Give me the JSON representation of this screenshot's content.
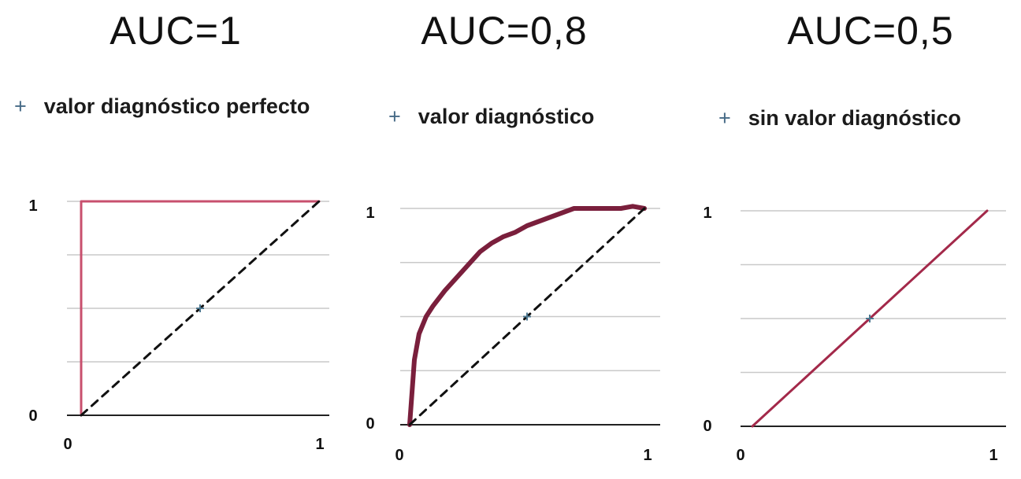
{
  "panels": [
    {
      "title": "AUC=1",
      "subtitle_marker": "+",
      "subtitle": "valor diagnóstico perfecto"
    },
    {
      "title": "AUC=0,8",
      "subtitle_marker": "+",
      "subtitle": "valor diagnóstico"
    },
    {
      "title": "AUC=0,5",
      "subtitle_marker": "+",
      "subtitle": "sin valor diagnóstico"
    }
  ],
  "colors": {
    "roc_curve_panel1": "#c8506e",
    "roc_curve_panel2": "#7a1f3c",
    "roc_curve_panel3": "#a3294a",
    "diagonal": "#111111",
    "grid": "#c9c9c9",
    "center_marker": "#4e7890"
  },
  "chart_data": [
    {
      "type": "line",
      "title": "AUC=1",
      "xlim": [
        0,
        1
      ],
      "ylim": [
        0,
        1
      ],
      "x_ticks": [
        "0",
        "1"
      ],
      "y_ticks": [
        "0",
        "1"
      ],
      "grid": "horizontal",
      "center_marker": [
        0.5,
        0.5
      ],
      "series": [
        {
          "x": [
            0,
            0,
            1
          ],
          "y": [
            0,
            1,
            1
          ],
          "style": "solid"
        },
        {
          "x": [
            0,
            1
          ],
          "y": [
            0,
            1
          ],
          "style": "dashed"
        }
      ]
    },
    {
      "type": "line",
      "title": "AUC=0,8",
      "xlim": [
        0,
        1
      ],
      "ylim": [
        0,
        1
      ],
      "x_ticks": [
        "0",
        "1"
      ],
      "y_ticks": [
        "0",
        "1"
      ],
      "grid": "horizontal",
      "center_marker": [
        0.5,
        0.5
      ],
      "series": [
        {
          "x": [
            0,
            0.01,
            0.02,
            0.04,
            0.07,
            0.1,
            0.15,
            0.2,
            0.25,
            0.3,
            0.35,
            0.4,
            0.45,
            0.5,
            0.55,
            0.6,
            0.65,
            0.7,
            0.75,
            0.8,
            0.85,
            0.9,
            0.95,
            1
          ],
          "y": [
            0,
            0.15,
            0.3,
            0.42,
            0.5,
            0.55,
            0.62,
            0.68,
            0.74,
            0.8,
            0.84,
            0.87,
            0.89,
            0.92,
            0.94,
            0.96,
            0.98,
            1,
            1,
            1,
            1,
            1,
            1.01,
            1
          ],
          "style": "solid"
        },
        {
          "x": [
            0,
            1
          ],
          "y": [
            0,
            1
          ],
          "style": "dashed"
        }
      ]
    },
    {
      "type": "line",
      "title": "AUC=0,5",
      "xlim": [
        0,
        1
      ],
      "ylim": [
        0,
        1
      ],
      "x_ticks": [
        "0",
        "1"
      ],
      "y_ticks": [
        "0",
        "1"
      ],
      "grid": "horizontal",
      "center_marker": [
        0.5,
        0.5
      ],
      "series": [
        {
          "x": [
            0,
            1
          ],
          "y": [
            0,
            1
          ],
          "style": "solid"
        }
      ]
    }
  ]
}
